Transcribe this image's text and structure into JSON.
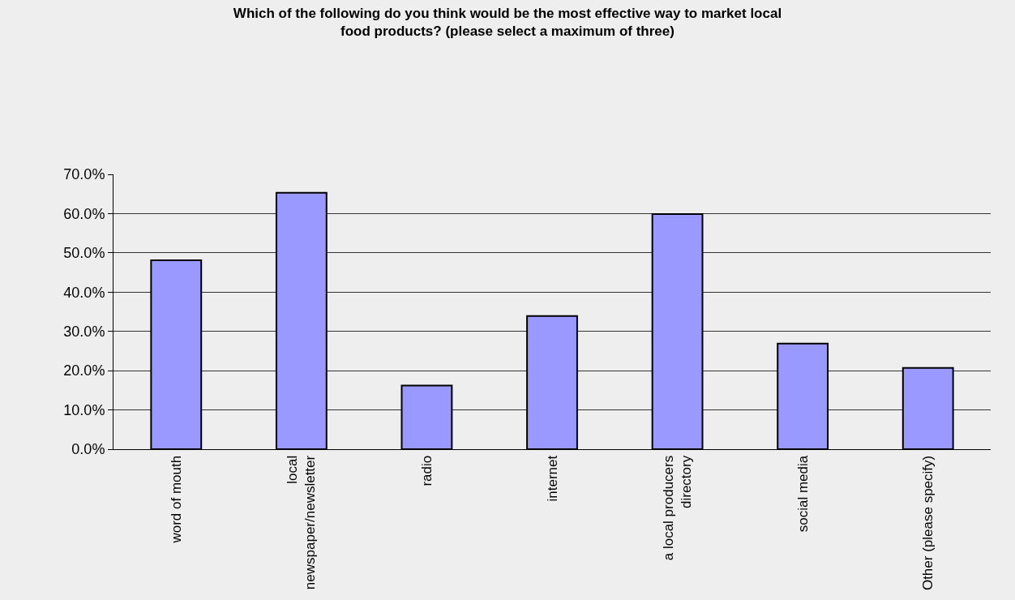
{
  "chart_data": {
    "type": "bar",
    "title": "Which of the following do you think would be the most effective way to market local food products? (please select a maximum of three)",
    "categories": [
      "word of mouth",
      "local newspaper/newsletter",
      "radio",
      "internet",
      "a local producers directory",
      "social media",
      "Other (please specify)"
    ],
    "values": [
      48.1,
      65.3,
      16.2,
      33.9,
      59.9,
      26.9,
      20.7
    ],
    "color": "#9999ff",
    "ylim": [
      0,
      70
    ],
    "yticks": [
      {
        "value": 0,
        "label": "0.0%"
      },
      {
        "value": 10,
        "label": "10.0%"
      },
      {
        "value": 20,
        "label": "20.0%"
      },
      {
        "value": 30,
        "label": "30.0%"
      },
      {
        "value": 40,
        "label": "40.0%"
      },
      {
        "value": 50,
        "label": "50.0%"
      },
      {
        "value": 60,
        "label": "60.0%"
      },
      {
        "value": 70,
        "label": "70.0%"
      }
    ],
    "grid": "y",
    "legend": false
  }
}
